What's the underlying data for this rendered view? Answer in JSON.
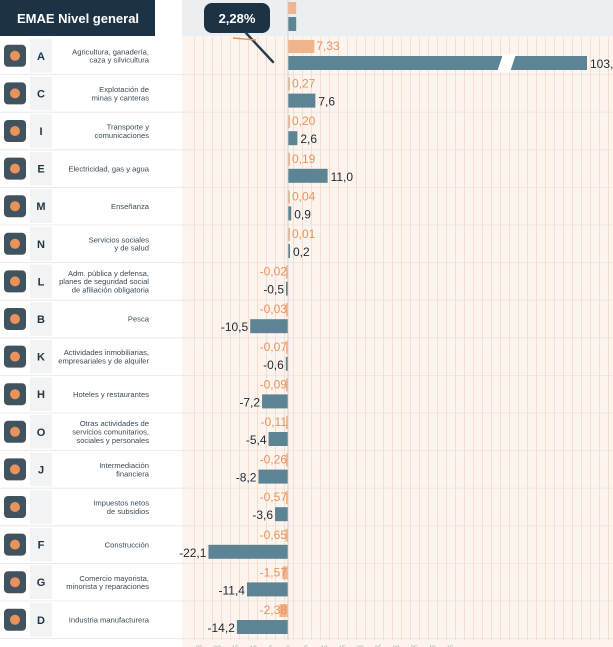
{
  "chart_data": {
    "type": "bar",
    "header": {
      "title": "EMAE Nivel general",
      "total": "2,28%",
      "total_value": 2.28
    },
    "series": [
      {
        "key": "contribution",
        "color": "#f2b48d"
      },
      {
        "key": "variation",
        "color": "#5c8494"
      }
    ],
    "xlim": [
      -26,
      46
    ],
    "x_ticks": [
      -25,
      -20,
      -15,
      -10,
      -5,
      0,
      5,
      10,
      15,
      20,
      25,
      30,
      35,
      40,
      45
    ],
    "axis_break": {
      "at_label": "103,3"
    },
    "categories": [
      {
        "letter": "A",
        "name": "Agricultura, ganadería,\ncaza y silvicultura",
        "contribution": 7.33,
        "contribution_label": "7,33",
        "variation": 103.3,
        "variation_label": "103,3",
        "icon": "tractor-icon"
      },
      {
        "letter": "C",
        "name": "Explotación de\nminas y canteras",
        "contribution": 0.27,
        "contribution_label": "0,27",
        "variation": 7.6,
        "variation_label": "7,6",
        "icon": "oil-pump-icon"
      },
      {
        "letter": "I",
        "name": "Transporte y\ncomunicaciones",
        "contribution": 0.2,
        "contribution_label": "0,20",
        "variation": 2.6,
        "variation_label": "2,6",
        "icon": "antenna-icon"
      },
      {
        "letter": "E",
        "name": "Electricidad, gas y agua",
        "contribution": 0.19,
        "contribution_label": "0,19",
        "variation": 11.0,
        "variation_label": "11,0",
        "icon": "power-plant-icon"
      },
      {
        "letter": "M",
        "name": "Enseñanza",
        "contribution": 0.04,
        "contribution_label": "0,04",
        "variation": 0.9,
        "variation_label": "0,9",
        "icon": "books-icon"
      },
      {
        "letter": "N",
        "name": "Servicios sociales\ny de salud",
        "contribution": 0.01,
        "contribution_label": "0,01",
        "variation": 0.2,
        "variation_label": "0,2",
        "icon": "pill-icon"
      },
      {
        "letter": "L",
        "name": "Adm. pública y defensa,\nplanes de seguridad social\nde afiliación obligatoria",
        "contribution": -0.02,
        "contribution_label": "-0,02",
        "variation": -0.5,
        "variation_label": "-0,5",
        "icon": "capitol-icon"
      },
      {
        "letter": "B",
        "name": "Pesca",
        "contribution": -0.03,
        "contribution_label": "-0,03",
        "variation": -10.5,
        "variation_label": "-10,5",
        "icon": "boat-icon"
      },
      {
        "letter": "K",
        "name": "Actividades inmobiliarias,\nempresariales y de alquiler",
        "contribution": -0.07,
        "contribution_label": "-0,07",
        "variation": -0.6,
        "variation_label": "-0,6",
        "icon": "house-icon"
      },
      {
        "letter": "H",
        "name": "Hoteles y restaurantes",
        "contribution": -0.09,
        "contribution_label": "-0,09",
        "variation": -7.2,
        "variation_label": "-7,2",
        "icon": "hotel-icon"
      },
      {
        "letter": "O",
        "name": "Otras actividades de\nservicios comunitarios,\nsociales y personales",
        "contribution": -0.11,
        "contribution_label": "-0,11",
        "variation": -5.4,
        "variation_label": "-5,4",
        "icon": "community-icon"
      },
      {
        "letter": "J",
        "name": "Intermediación\nfinanciera",
        "contribution": -0.26,
        "contribution_label": "-0,26",
        "variation": -8.2,
        "variation_label": "-8,2",
        "icon": "bank-icon"
      },
      {
        "letter": "",
        "name": "Impuestos netos\nde subsidios",
        "contribution": -0.57,
        "contribution_label": "-0,57",
        "variation": -3.6,
        "variation_label": "-3,6",
        "icon": "tax-icon"
      },
      {
        "letter": "F",
        "name": "Construcción",
        "contribution": -0.65,
        "contribution_label": "-0,65",
        "variation": -22.1,
        "variation_label": "-22,1",
        "icon": "crane-icon"
      },
      {
        "letter": "G",
        "name": "Comercio mayorista,\nminorista y reparaciones",
        "contribution": -1.57,
        "contribution_label": "-1,57",
        "variation": -11.4,
        "variation_label": "-11,4",
        "icon": "truck-icon"
      },
      {
        "letter": "D",
        "name": "Industria manufacturera",
        "contribution": -2.38,
        "contribution_label": "-2,38",
        "variation": -14.2,
        "variation_label": "-14,2",
        "icon": "gears-icon"
      }
    ],
    "grid": true
  }
}
